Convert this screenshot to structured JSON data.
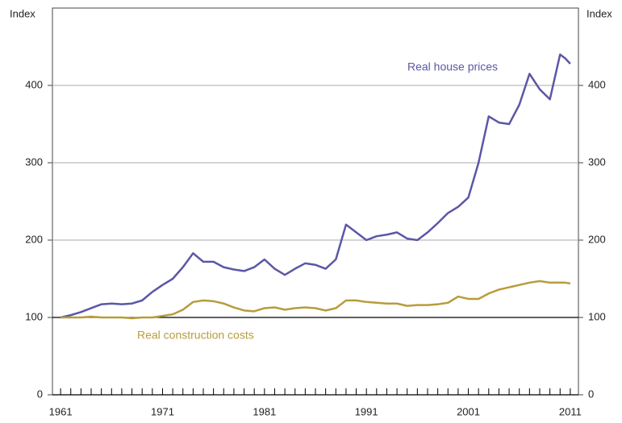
{
  "chart_data": {
    "type": "line",
    "y_label": "Index",
    "y2_label": "Index",
    "x": [
      1961,
      1962,
      1963,
      1964,
      1965,
      1966,
      1967,
      1968,
      1969,
      1970,
      1971,
      1972,
      1973,
      1974,
      1975,
      1976,
      1977,
      1978,
      1979,
      1980,
      1981,
      1982,
      1983,
      1984,
      1985,
      1986,
      1987,
      1988,
      1989,
      1990,
      1991,
      1992,
      1993,
      1994,
      1995,
      1996,
      1997,
      1998,
      1999,
      2000,
      2001,
      2002,
      2003,
      2004,
      2005,
      2006,
      2007,
      2008,
      2009,
      2010,
      2010.5,
      2011
    ],
    "series": [
      {
        "name": "Real house prices",
        "color": "#5b57a6",
        "values": [
          100,
          103,
          107,
          112,
          117,
          118,
          117,
          118,
          122,
          133,
          142,
          150,
          165,
          183,
          172,
          172,
          165,
          162,
          160,
          165,
          175,
          163,
          155,
          163,
          170,
          168,
          163,
          175,
          220,
          210,
          200,
          205,
          207,
          210,
          202,
          200,
          210,
          222,
          235,
          243,
          255,
          300,
          360,
          352,
          350,
          375,
          415,
          395,
          382,
          440,
          435,
          428
        ]
      },
      {
        "name": "Real construction costs",
        "color": "#b89c3c",
        "values": [
          100,
          100,
          100,
          101,
          100,
          100,
          100,
          99,
          100,
          100,
          102,
          104,
          110,
          120,
          122,
          121,
          118,
          113,
          109,
          108,
          112,
          113,
          110,
          112,
          113,
          112,
          109,
          112,
          122,
          122,
          120,
          119,
          118,
          118,
          115,
          116,
          116,
          117,
          119,
          127,
          124,
          124,
          131,
          136,
          139,
          142,
          145,
          147,
          145,
          145,
          145,
          144
        ]
      }
    ],
    "xlim": [
      1960.2,
      2011.8
    ],
    "xticks": [
      1961,
      1971,
      1981,
      1991,
      2001,
      2011
    ],
    "xminorticks": [
      1961,
      1962,
      1963,
      1964,
      1965,
      1966,
      1967,
      1968,
      1969,
      1970,
      1971,
      1972,
      1973,
      1974,
      1975,
      1976,
      1977,
      1978,
      1979,
      1980,
      1981,
      1982,
      1983,
      1984,
      1985,
      1986,
      1987,
      1988,
      1989,
      1990,
      1991,
      1992,
      1993,
      1994,
      1995,
      1996,
      1997,
      1998,
      1999,
      2000,
      2001,
      2002,
      2003,
      2004,
      2005,
      2006,
      2007,
      2008,
      2009,
      2010,
      2011
    ],
    "ylim": [
      0,
      500
    ],
    "yticks": [
      0,
      100,
      200,
      300,
      400
    ],
    "y2lim": [
      0,
      500
    ],
    "y2ticks": [
      0,
      100,
      200,
      300,
      400
    ],
    "reference_line": 100,
    "grid": true
  }
}
